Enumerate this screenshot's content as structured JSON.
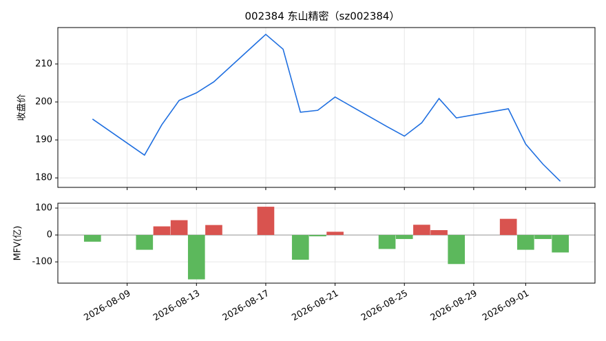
{
  "chart_data": [
    {
      "type": "line",
      "title": "002384 东山精密（sz002384）",
      "ylabel": "收盘价",
      "x": [
        "2026-08-07",
        "2026-08-10",
        "2026-08-11",
        "2026-08-12",
        "2026-08-13",
        "2026-08-14",
        "2026-08-17",
        "2026-08-18",
        "2026-08-19",
        "2026-08-20",
        "2026-08-21",
        "2026-08-24",
        "2026-08-25",
        "2026-08-26",
        "2026-08-27",
        "2026-08-28",
        "2026-08-31",
        "2026-09-01",
        "2026-09-02",
        "2026-09-03"
      ],
      "series": [
        {
          "name": "收盘价",
          "color": "#1f6fe0",
          "values": [
            195.5,
            186.0,
            194.0,
            200.4,
            202.4,
            205.3,
            217.8,
            213.9,
            197.3,
            197.8,
            201.3,
            193.5,
            191.0,
            194.5,
            200.9,
            195.8,
            198.2,
            188.9,
            183.6,
            179.1
          ]
        }
      ],
      "xlim": [
        "2026-08-05",
        "2026-09-05"
      ],
      "ylim": [
        177.5,
        219.6
      ],
      "yticks": [
        180,
        190,
        200,
        210
      ],
      "grid": true
    },
    {
      "type": "bar",
      "ylabel": "MFV(亿)",
      "x": [
        "2026-08-07",
        "2026-08-10",
        "2026-08-11",
        "2026-08-12",
        "2026-08-13",
        "2026-08-14",
        "2026-08-17",
        "2026-08-18",
        "2026-08-19",
        "2026-08-20",
        "2026-08-21",
        "2026-08-24",
        "2026-08-25",
        "2026-08-26",
        "2026-08-27",
        "2026-08-28",
        "2026-08-31",
        "2026-09-01",
        "2026-09-02",
        "2026-09-03"
      ],
      "values": [
        -25,
        -55,
        32,
        55,
        -165,
        37,
        105,
        0,
        -92,
        -5,
        12,
        -52,
        -15,
        38,
        18,
        -108,
        60,
        -55,
        -15,
        -65
      ],
      "colors": {
        "positive": "#d9534f",
        "negative": "#5cb85c"
      },
      "xlim": [
        "2026-08-05",
        "2026-09-05"
      ],
      "xticks": [
        "2026-08-09",
        "2026-08-13",
        "2026-08-17",
        "2026-08-21",
        "2026-08-25",
        "2026-08-29",
        "2026-09-01"
      ],
      "ylim": [
        -179,
        118
      ],
      "yticks": [
        -100,
        0,
        100
      ],
      "grid": true
    }
  ]
}
